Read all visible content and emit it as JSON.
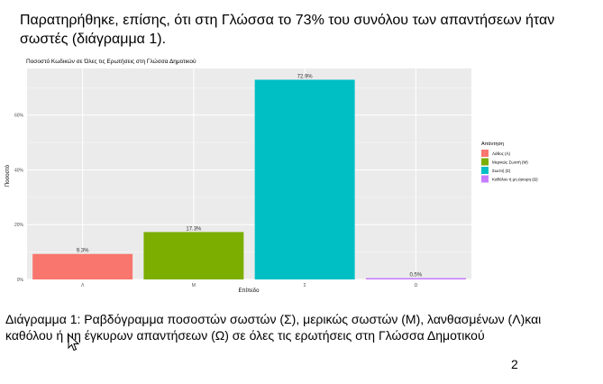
{
  "document": {
    "paragraph": "Παρατηρήθηκε, επίσης, ότι στη Γλώσσα το 73% του συνόλου των απαντήσεων ήταν σωστές (διάγραμμα 1).",
    "caption": "Διάγραμμα 1: Ραβδόγραμμα ποσοστών σωστών (Σ), μερικώς σωστών (Μ), λανθασμένων (Λ)και καθόλου ή μη έγκυρων απαντήσεων (Ω) σε όλες τις ερωτήσεις στη Γλώσσα Δημοτικού",
    "page_number": "2"
  },
  "chart_data": {
    "type": "bar",
    "title": "Ποσοστό Κωδικών σε Όλες τις Ερωτήσεις στη Γλώσσα Δημοτικού",
    "xlabel": "Επίπεδο",
    "ylabel": "Ποσοστό",
    "categories": [
      "Λ",
      "Μ",
      "Σ",
      "Ω"
    ],
    "values": [
      9.3,
      17.3,
      72.9,
      0.5
    ],
    "data_labels": [
      "9.3%",
      "17.3%",
      "72.9%",
      "0.5%"
    ],
    "colors": [
      "#F8766D",
      "#7CAE00",
      "#00BFC4",
      "#C77CFF"
    ],
    "ylim": [
      0,
      77
    ],
    "yticks": [
      0,
      20,
      40,
      60
    ],
    "ytick_labels": [
      "0%",
      "20%",
      "40%",
      "60%"
    ],
    "grid": true,
    "panel_background": "#EBEBEB",
    "legend": {
      "title": "Απάντηση",
      "placement": "right",
      "entries": [
        "Λάθος (Λ)",
        "Μερικώς Σωστή (Μ)",
        "Σωστή (Σ)",
        "Καθόλου ή μη έγκυρη (Ω)"
      ]
    }
  }
}
